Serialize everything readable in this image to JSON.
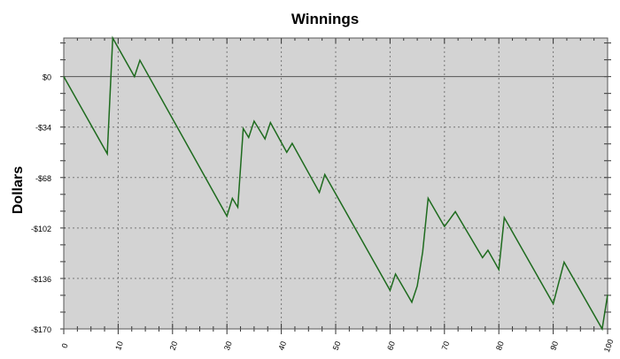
{
  "chart_data": {
    "type": "line",
    "title": "Winnings",
    "xlabel": "",
    "ylabel": "Dollars",
    "xlim": [
      0,
      100
    ],
    "ylim": [
      -170,
      26
    ],
    "grid": true,
    "x_ticks": [
      "0",
      "10",
      "20",
      "30",
      "40",
      "50",
      "60",
      "70",
      "80",
      "90",
      "100"
    ],
    "y_ticks": [
      {
        "v": 0,
        "label": "$0"
      },
      {
        "v": -34,
        "label": "-$34"
      },
      {
        "v": -68,
        "label": "-$68"
      },
      {
        "v": -102,
        "label": "-$102"
      },
      {
        "v": -136,
        "label": "-$136"
      },
      {
        "v": -170,
        "label": "-$170"
      }
    ],
    "line_color": "#1e6b1e",
    "background_color": "#d3d3d3",
    "series": [
      {
        "x": [
          0,
          8,
          9,
          13,
          14,
          30,
          31,
          32,
          33,
          34,
          35,
          37,
          38,
          41,
          42,
          47,
          48,
          60,
          61,
          64,
          65,
          66,
          67,
          70,
          72,
          77,
          78,
          80,
          81,
          90,
          92,
          99,
          100
        ],
        "y": [
          0,
          -52,
          26,
          0,
          11,
          -94,
          -82,
          -88,
          -35,
          -41,
          -30,
          -42,
          -31,
          -51,
          -45,
          -78,
          -66,
          -144,
          -133,
          -152,
          -141,
          -118,
          -82,
          -101,
          -91,
          -122,
          -117,
          -130,
          -95,
          -153,
          -125,
          -170,
          -147
        ]
      }
    ]
  }
}
